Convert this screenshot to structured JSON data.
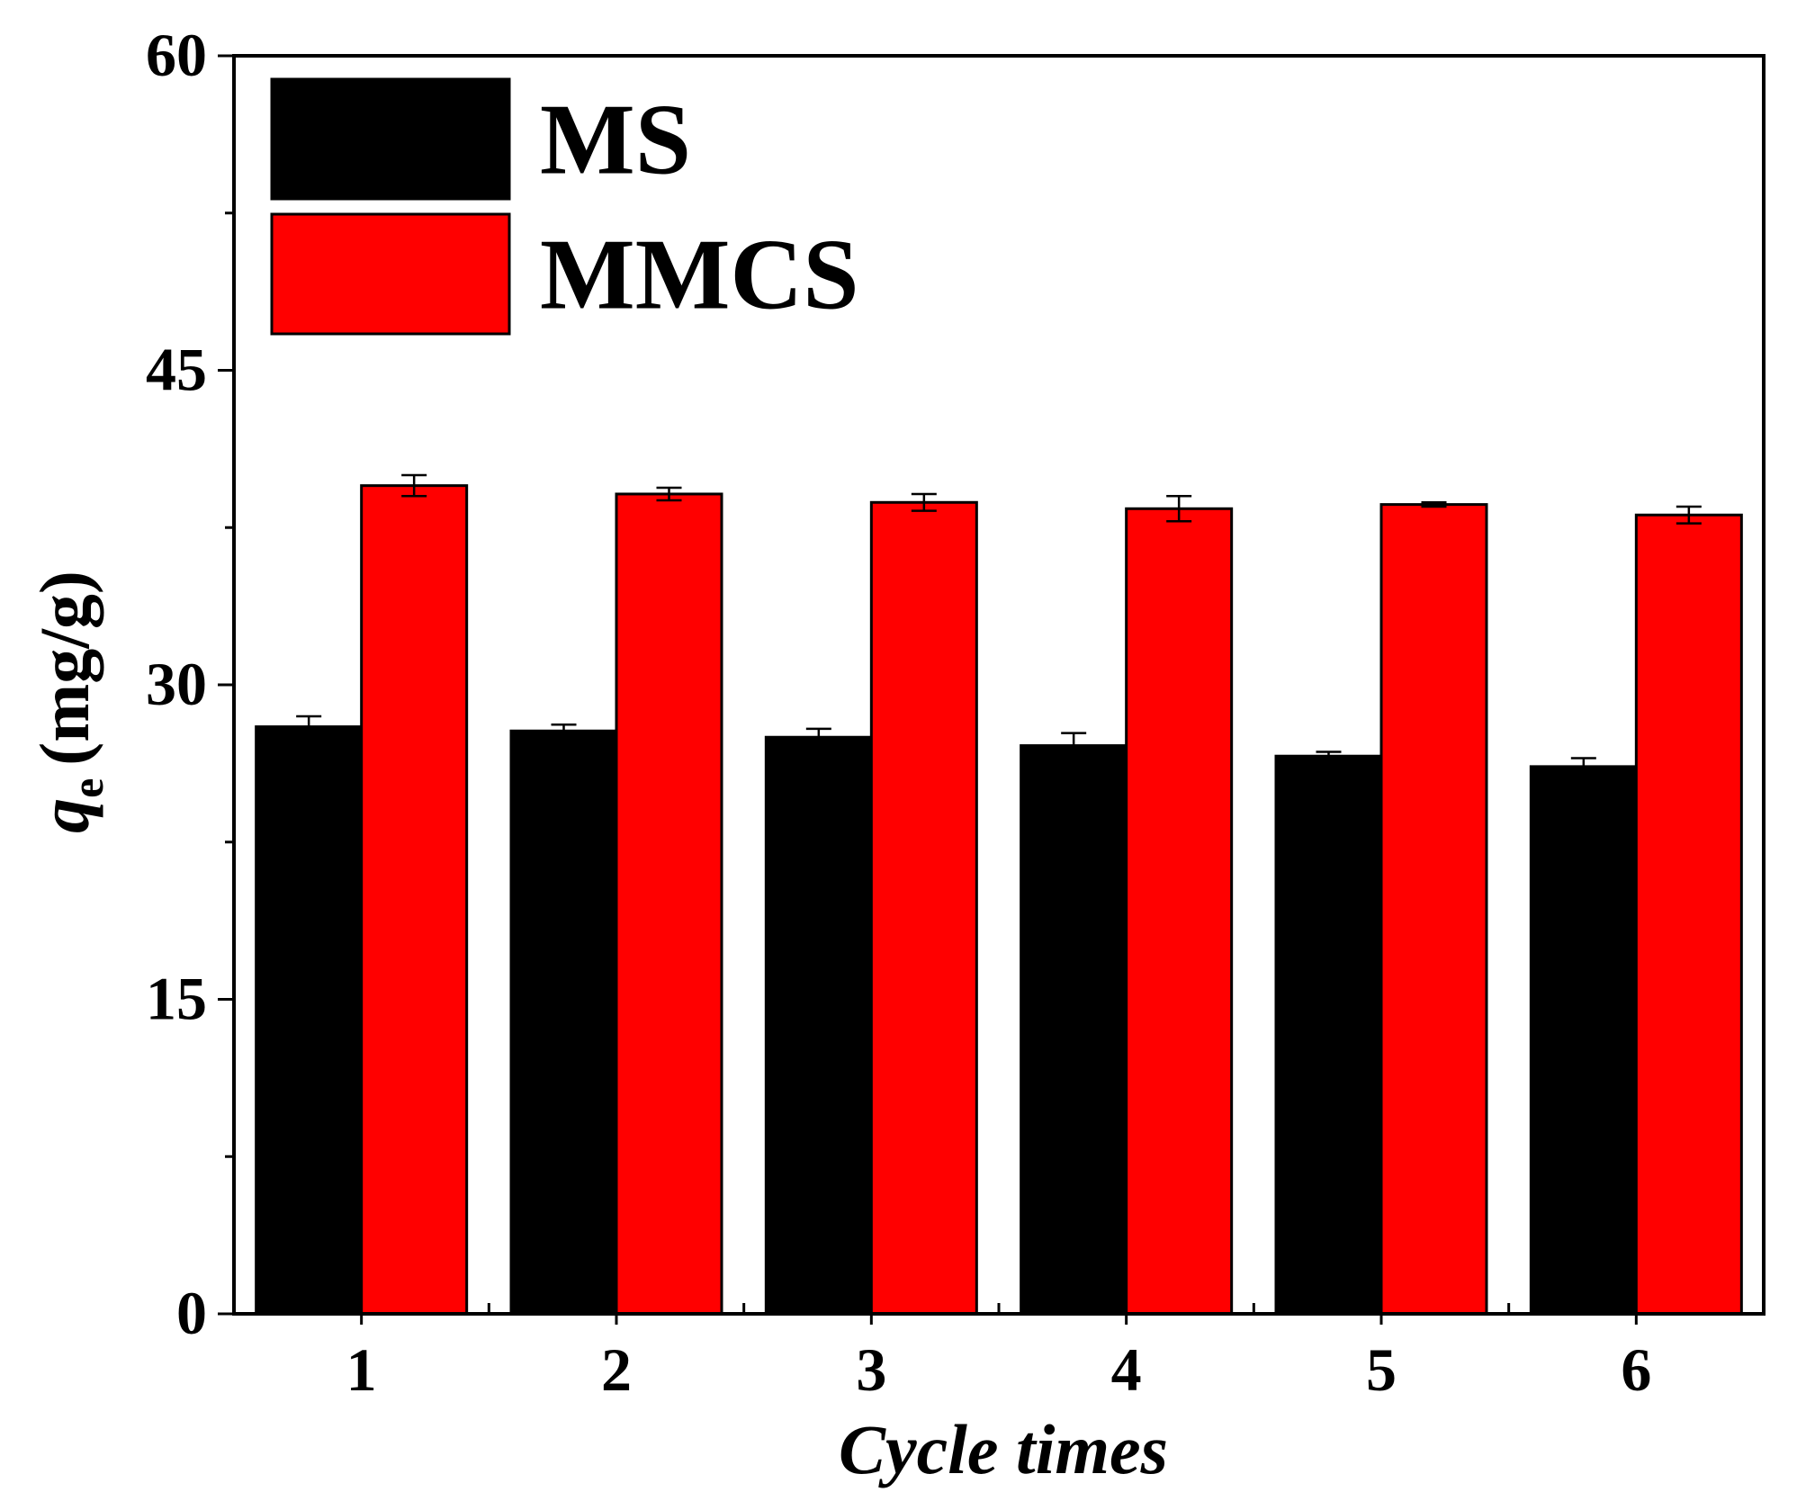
{
  "chart_data": {
    "type": "bar",
    "title": "",
    "xlabel": "Cycle times",
    "ylabel_main": "q",
    "ylabel_sub": "e",
    "ylabel_unit": "(mg/g)",
    "categories": [
      "1",
      "2",
      "3",
      "4",
      "5",
      "6"
    ],
    "series": [
      {
        "name": "MS",
        "color": "#000000",
        "values": [
          28.0,
          27.8,
          27.5,
          27.1,
          26.6,
          26.1
        ],
        "errors": [
          0.5,
          0.3,
          0.4,
          0.6,
          0.2,
          0.4
        ]
      },
      {
        "name": "MMCS",
        "color": "#ff0000",
        "values": [
          39.5,
          39.1,
          38.7,
          38.4,
          38.6,
          38.1
        ],
        "errors": [
          0.5,
          0.3,
          0.4,
          0.6,
          0.1,
          0.4
        ]
      }
    ],
    "ylim": [
      0,
      60
    ],
    "yticks": [
      "0",
      "15",
      "30",
      "45",
      "60"
    ],
    "ytick_values": [
      0,
      15,
      30,
      45,
      60
    ],
    "ytick_minor": [
      7.5,
      22.5,
      37.5,
      52.5
    ],
    "legend_position": "top-left",
    "grid": false
  }
}
